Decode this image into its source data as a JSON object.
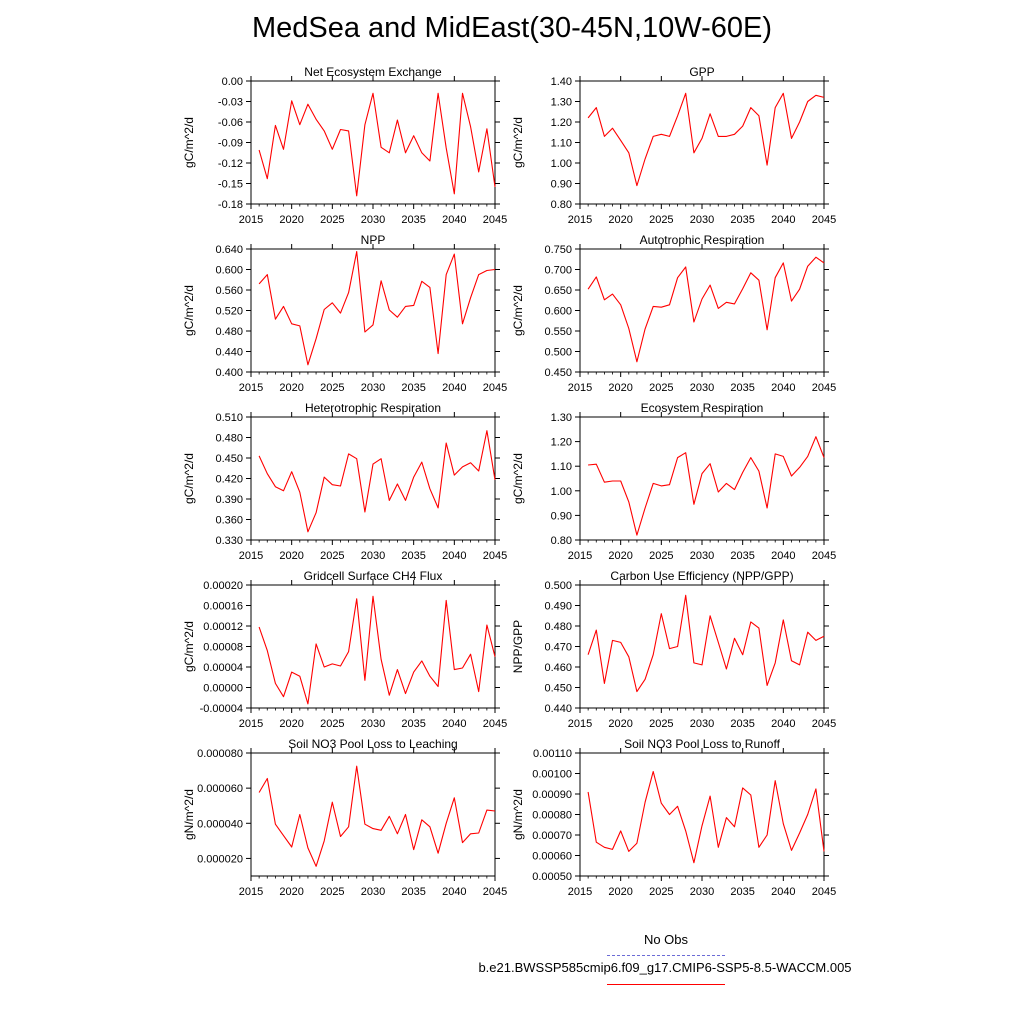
{
  "title": "MedSea and MidEast(30-45N,10W-60E)",
  "colors": {
    "series": "#ff0000",
    "obs": "#6b6bd6",
    "axis": "#000000"
  },
  "legend": {
    "obs_label": "No Obs",
    "case_label": "b.e21.BWSSP585cmip6.f09_g17.CMIP6-SSP5-8.5-WACCM.005"
  },
  "chart_data": [
    {
      "type": "line",
      "title": "Net Ecosystem Exchange",
      "ylabel": "gC/m^2/d",
      "xlim": [
        2015,
        2045
      ],
      "xticks": [
        2015,
        2020,
        2025,
        2030,
        2035,
        2040,
        2045
      ],
      "ylim": [
        -0.18,
        0.0
      ],
      "yticks": [
        0.0,
        -0.03,
        -0.06,
        -0.09,
        -0.12,
        -0.15,
        -0.18
      ],
      "ytick_labels": [
        "0.00",
        "-0.03",
        "-0.06",
        "-0.09",
        "-0.12",
        "-0.15",
        "-0.18"
      ],
      "x": [
        2016,
        2017,
        2018,
        2019,
        2020,
        2021,
        2022,
        2023,
        2024,
        2025,
        2026,
        2027,
        2028,
        2029,
        2030,
        2031,
        2032,
        2033,
        2034,
        2035,
        2036,
        2037,
        2038,
        2039,
        2040,
        2041,
        2042,
        2043,
        2044,
        2045
      ],
      "values": [
        -0.101,
        -0.143,
        -0.065,
        -0.1,
        -0.029,
        -0.064,
        -0.034,
        -0.056,
        -0.073,
        -0.1,
        -0.071,
        -0.073,
        -0.168,
        -0.064,
        -0.018,
        -0.097,
        -0.105,
        -0.057,
        -0.105,
        -0.08,
        -0.105,
        -0.117,
        -0.018,
        -0.098,
        -0.165,
        -0.018,
        -0.067,
        -0.133,
        -0.07,
        -0.155
      ]
    },
    {
      "type": "line",
      "title": "GPP",
      "ylabel": "gC/m^2/d",
      "xlim": [
        2015,
        2045
      ],
      "xticks": [
        2015,
        2020,
        2025,
        2030,
        2035,
        2040,
        2045
      ],
      "ylim": [
        0.8,
        1.4
      ],
      "yticks": [
        1.4,
        1.3,
        1.2,
        1.1,
        1.0,
        0.9,
        0.8
      ],
      "ytick_labels": [
        "1.40",
        "1.30",
        "1.20",
        "1.10",
        "1.00",
        "0.90",
        "0.80"
      ],
      "x": [
        2016,
        2017,
        2018,
        2019,
        2020,
        2021,
        2022,
        2023,
        2024,
        2025,
        2026,
        2027,
        2028,
        2029,
        2030,
        2031,
        2032,
        2033,
        2034,
        2035,
        2036,
        2037,
        2038,
        2039,
        2040,
        2041,
        2042,
        2043,
        2044,
        2045
      ],
      "values": [
        1.22,
        1.27,
        1.13,
        1.17,
        1.11,
        1.05,
        0.89,
        1.02,
        1.13,
        1.14,
        1.13,
        1.23,
        1.34,
        1.05,
        1.12,
        1.24,
        1.13,
        1.13,
        1.14,
        1.18,
        1.27,
        1.23,
        0.99,
        1.27,
        1.34,
        1.12,
        1.2,
        1.3,
        1.33,
        1.32
      ]
    },
    {
      "type": "line",
      "title": "NPP",
      "ylabel": "gC/m^2/d",
      "xlim": [
        2015,
        2045
      ],
      "xticks": [
        2015,
        2020,
        2025,
        2030,
        2035,
        2040,
        2045
      ],
      "ylim": [
        0.4,
        0.64
      ],
      "yticks": [
        0.64,
        0.6,
        0.56,
        0.52,
        0.48,
        0.44,
        0.4
      ],
      "ytick_labels": [
        "0.640",
        "0.600",
        "0.560",
        "0.520",
        "0.480",
        "0.440",
        "0.400"
      ],
      "x": [
        2016,
        2017,
        2018,
        2019,
        2020,
        2021,
        2022,
        2023,
        2024,
        2025,
        2026,
        2027,
        2028,
        2029,
        2030,
        2031,
        2032,
        2033,
        2034,
        2035,
        2036,
        2037,
        2038,
        2039,
        2040,
        2041,
        2042,
        2043,
        2044,
        2045
      ],
      "values": [
        0.572,
        0.59,
        0.503,
        0.528,
        0.494,
        0.49,
        0.414,
        0.465,
        0.522,
        0.535,
        0.515,
        0.555,
        0.635,
        0.478,
        0.492,
        0.578,
        0.521,
        0.507,
        0.528,
        0.53,
        0.577,
        0.565,
        0.436,
        0.59,
        0.63,
        0.494,
        0.545,
        0.59,
        0.598,
        0.6
      ]
    },
    {
      "type": "line",
      "title": "Autotrophic Respiration",
      "ylabel": "gC/m^2/d",
      "xlim": [
        2015,
        2045
      ],
      "xticks": [
        2015,
        2020,
        2025,
        2030,
        2035,
        2040,
        2045
      ],
      "ylim": [
        0.45,
        0.75
      ],
      "yticks": [
        0.75,
        0.7,
        0.65,
        0.6,
        0.55,
        0.5,
        0.45
      ],
      "ytick_labels": [
        "0.750",
        "0.700",
        "0.650",
        "0.600",
        "0.550",
        "0.500",
        "0.450"
      ],
      "x": [
        2016,
        2017,
        2018,
        2019,
        2020,
        2021,
        2022,
        2023,
        2024,
        2025,
        2026,
        2027,
        2028,
        2029,
        2030,
        2031,
        2032,
        2033,
        2034,
        2035,
        2036,
        2037,
        2038,
        2039,
        2040,
        2041,
        2042,
        2043,
        2044,
        2045
      ],
      "values": [
        0.652,
        0.682,
        0.626,
        0.64,
        0.614,
        0.556,
        0.475,
        0.555,
        0.61,
        0.608,
        0.614,
        0.68,
        0.706,
        0.572,
        0.628,
        0.662,
        0.605,
        0.62,
        0.616,
        0.653,
        0.692,
        0.674,
        0.553,
        0.68,
        0.716,
        0.623,
        0.652,
        0.708,
        0.73,
        0.716
      ]
    },
    {
      "type": "line",
      "title": "Heterotrophic Respiration",
      "ylabel": "gC/m^2/d",
      "xlim": [
        2015,
        2045
      ],
      "xticks": [
        2015,
        2020,
        2025,
        2030,
        2035,
        2040,
        2045
      ],
      "ylim": [
        0.33,
        0.51
      ],
      "yticks": [
        0.51,
        0.48,
        0.45,
        0.42,
        0.39,
        0.36,
        0.33
      ],
      "ytick_labels": [
        "0.510",
        "0.480",
        "0.450",
        "0.420",
        "0.390",
        "0.360",
        "0.330"
      ],
      "x": [
        2016,
        2017,
        2018,
        2019,
        2020,
        2021,
        2022,
        2023,
        2024,
        2025,
        2026,
        2027,
        2028,
        2029,
        2030,
        2031,
        2032,
        2033,
        2034,
        2035,
        2036,
        2037,
        2038,
        2039,
        2040,
        2041,
        2042,
        2043,
        2044,
        2045
      ],
      "values": [
        0.453,
        0.427,
        0.408,
        0.402,
        0.43,
        0.4,
        0.342,
        0.37,
        0.422,
        0.411,
        0.409,
        0.456,
        0.449,
        0.371,
        0.441,
        0.449,
        0.388,
        0.412,
        0.388,
        0.422,
        0.444,
        0.405,
        0.377,
        0.472,
        0.425,
        0.437,
        0.443,
        0.431,
        0.49,
        0.418
      ]
    },
    {
      "type": "line",
      "title": "Ecosystem Respiration",
      "ylabel": "gC/m^2/d",
      "xlim": [
        2015,
        2045
      ],
      "xticks": [
        2015,
        2020,
        2025,
        2030,
        2035,
        2040,
        2045
      ],
      "ylim": [
        0.8,
        1.3
      ],
      "yticks": [
        1.3,
        1.2,
        1.1,
        1.0,
        0.9,
        0.8
      ],
      "ytick_labels": [
        "1.30",
        "1.20",
        "1.10",
        "1.00",
        "0.90",
        "0.80"
      ],
      "x": [
        2016,
        2017,
        2018,
        2019,
        2020,
        2021,
        2022,
        2023,
        2024,
        2025,
        2026,
        2027,
        2028,
        2029,
        2030,
        2031,
        2032,
        2033,
        2034,
        2035,
        2036,
        2037,
        2038,
        2039,
        2040,
        2041,
        2042,
        2043,
        2044,
        2045
      ],
      "values": [
        1.105,
        1.108,
        1.035,
        1.04,
        1.04,
        0.955,
        0.82,
        0.93,
        1.03,
        1.02,
        1.025,
        1.135,
        1.155,
        0.945,
        1.07,
        1.11,
        0.995,
        1.03,
        1.005,
        1.075,
        1.135,
        1.08,
        0.93,
        1.15,
        1.14,
        1.06,
        1.095,
        1.14,
        1.22,
        1.135
      ]
    },
    {
      "type": "line",
      "title": "Gridcell Surface CH4 Flux",
      "ylabel": "gC/m^2/d",
      "xlim": [
        2015,
        2045
      ],
      "xticks": [
        2015,
        2020,
        2025,
        2030,
        2035,
        2040,
        2045
      ],
      "ylim": [
        -4e-05,
        0.0002
      ],
      "yticks": [
        0.0002,
        0.00016,
        0.00012,
        8e-05,
        4e-05,
        0.0,
        -4e-05
      ],
      "ytick_labels": [
        "0.00020",
        "0.00016",
        "0.00012",
        "0.00008",
        "0.00004",
        "0.00000",
        "-0.00004"
      ],
      "x": [
        2016,
        2017,
        2018,
        2019,
        2020,
        2021,
        2022,
        2023,
        2024,
        2025,
        2026,
        2027,
        2028,
        2029,
        2030,
        2031,
        2032,
        2033,
        2034,
        2035,
        2036,
        2037,
        2038,
        2039,
        2040,
        2041,
        2042,
        2043,
        2044,
        2045
      ],
      "values": [
        0.000118,
        7.2e-05,
        8e-06,
        -1.8e-05,
        3e-05,
        2.2e-05,
        -3.2e-05,
        8.5e-05,
        4e-05,
        4.6e-05,
        4.2e-05,
        7e-05,
        0.000173,
        1.4e-05,
        0.000178,
        5.5e-05,
        -1.5e-05,
        3.5e-05,
        -1.2e-05,
        3e-05,
        5.2e-05,
        2.2e-05,
        2e-06,
        0.00017,
        3.5e-05,
        3.8e-05,
        6.5e-05,
        -8e-06,
        0.000122,
        6e-05
      ]
    },
    {
      "type": "line",
      "title": "Carbon Use Efficiency (NPP/GPP)",
      "ylabel": "NPP/GPP",
      "xlim": [
        2015,
        2045
      ],
      "xticks": [
        2015,
        2020,
        2025,
        2030,
        2035,
        2040,
        2045
      ],
      "ylim": [
        0.44,
        0.5
      ],
      "yticks": [
        0.5,
        0.49,
        0.48,
        0.47,
        0.46,
        0.45,
        0.44
      ],
      "ytick_labels": [
        "0.500",
        "0.490",
        "0.480",
        "0.470",
        "0.460",
        "0.450",
        "0.440"
      ],
      "x": [
        2016,
        2017,
        2018,
        2019,
        2020,
        2021,
        2022,
        2023,
        2024,
        2025,
        2026,
        2027,
        2028,
        2029,
        2030,
        2031,
        2032,
        2033,
        2034,
        2035,
        2036,
        2037,
        2038,
        2039,
        2040,
        2041,
        2042,
        2043,
        2044,
        2045
      ],
      "values": [
        0.466,
        0.478,
        0.452,
        0.473,
        0.472,
        0.465,
        0.448,
        0.454,
        0.466,
        0.486,
        0.469,
        0.47,
        0.495,
        0.462,
        0.461,
        0.485,
        0.472,
        0.459,
        0.474,
        0.466,
        0.482,
        0.479,
        0.451,
        0.462,
        0.483,
        0.463,
        0.461,
        0.477,
        0.473,
        0.475
      ]
    },
    {
      "type": "line",
      "title": "Soil NO3 Pool Loss to Leaching",
      "ylabel": "gN/m^2/d",
      "xlim": [
        2015,
        2045
      ],
      "xticks": [
        2015,
        2020,
        2025,
        2030,
        2035,
        2040,
        2045
      ],
      "ylim": [
        1e-05,
        8e-05
      ],
      "yticks": [
        8e-05,
        6e-05,
        4e-05,
        2e-05
      ],
      "ytick_labels": [
        "0.000080",
        "0.000060",
        "0.000040",
        "0.000020"
      ],
      "x": [
        2016,
        2017,
        2018,
        2019,
        2020,
        2021,
        2022,
        2023,
        2024,
        2025,
        2026,
        2027,
        2028,
        2029,
        2030,
        2031,
        2032,
        2033,
        2034,
        2035,
        2036,
        2037,
        2038,
        2039,
        2040,
        2041,
        2042,
        2043,
        2044,
        2045
      ],
      "values": [
        5.75e-05,
        6.55e-05,
        3.95e-05,
        3.3e-05,
        2.65e-05,
        4.5e-05,
        2.6e-05,
        1.55e-05,
        3e-05,
        5.2e-05,
        3.25e-05,
        3.8e-05,
        7.25e-05,
        3.95e-05,
        3.7e-05,
        3.6e-05,
        4.4e-05,
        3.4e-05,
        4.5e-05,
        2.5e-05,
        4.2e-05,
        3.8e-05,
        2.3e-05,
        4e-05,
        5.45e-05,
        2.9e-05,
        3.4e-05,
        3.45e-05,
        4.75e-05,
        4.7e-05
      ]
    },
    {
      "type": "line",
      "title": "Soil NO3 Pool Loss to Runoff",
      "ylabel": "gN/m^2/d",
      "xlim": [
        2015,
        2045
      ],
      "xticks": [
        2015,
        2020,
        2025,
        2030,
        2035,
        2040,
        2045
      ],
      "ylim": [
        0.0005,
        0.0011
      ],
      "yticks": [
        0.0011,
        0.001,
        0.0009,
        0.0008,
        0.0007,
        0.0006,
        0.0005
      ],
      "ytick_labels": [
        "0.00110",
        "0.00100",
        "0.00090",
        "0.00080",
        "0.00070",
        "0.00060",
        "0.00050"
      ],
      "x": [
        2016,
        2017,
        2018,
        2019,
        2020,
        2021,
        2022,
        2023,
        2024,
        2025,
        2026,
        2027,
        2028,
        2029,
        2030,
        2031,
        2032,
        2033,
        2034,
        2035,
        2036,
        2037,
        2038,
        2039,
        2040,
        2041,
        2042,
        2043,
        2044,
        2045
      ],
      "values": [
        0.00091,
        0.000665,
        0.00064,
        0.00063,
        0.00072,
        0.00062,
        0.00066,
        0.00086,
        0.00101,
        0.000855,
        0.0008,
        0.00084,
        0.00072,
        0.000565,
        0.000745,
        0.00089,
        0.00064,
        0.000785,
        0.00074,
        0.00093,
        0.000895,
        0.00064,
        0.0007,
        0.000965,
        0.000755,
        0.000625,
        0.00071,
        0.0008,
        0.000925,
        0.00062
      ]
    }
  ]
}
